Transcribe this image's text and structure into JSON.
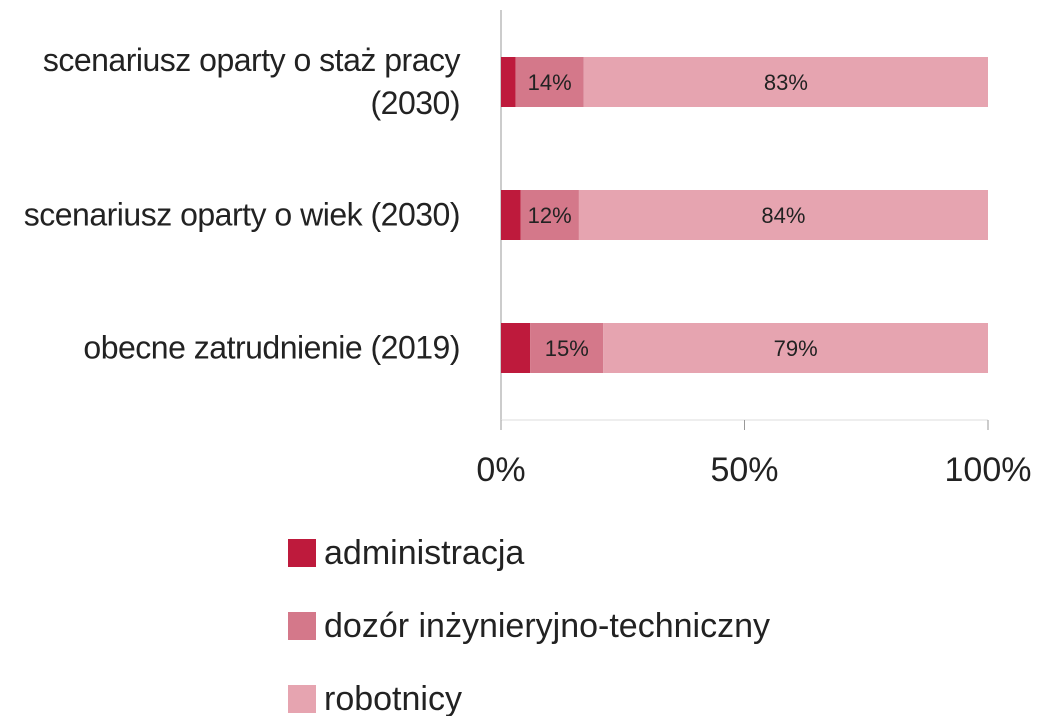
{
  "chart_data": {
    "type": "bar",
    "orientation": "horizontal",
    "stacked": true,
    "categories": [
      "scenariusz oparty o staż pracy (2030)",
      "scenariusz oparty o wiek (2030)",
      "obecne zatrudnienie (2019)"
    ],
    "series": [
      {
        "name": "administracja",
        "color": "#be1a3c",
        "values": [
          3,
          4,
          6
        ]
      },
      {
        "name": "dozór inżynieryjno-techniczny",
        "color": "#d4788a",
        "values": [
          14,
          12,
          15
        ],
        "value_labels": [
          "14%",
          "12%",
          "15%"
        ]
      },
      {
        "name": "robotnicy",
        "color": "#e6a4b0",
        "values": [
          83,
          84,
          79
        ],
        "value_labels": [
          "83%",
          "84%",
          "79%"
        ]
      }
    ],
    "xlim": [
      0,
      100
    ],
    "xticks": [
      {
        "value": 0,
        "label": "0%"
      },
      {
        "value": 50,
        "label": "50%"
      },
      {
        "value": 100,
        "label": "100%"
      }
    ],
    "legend": "bottom"
  }
}
